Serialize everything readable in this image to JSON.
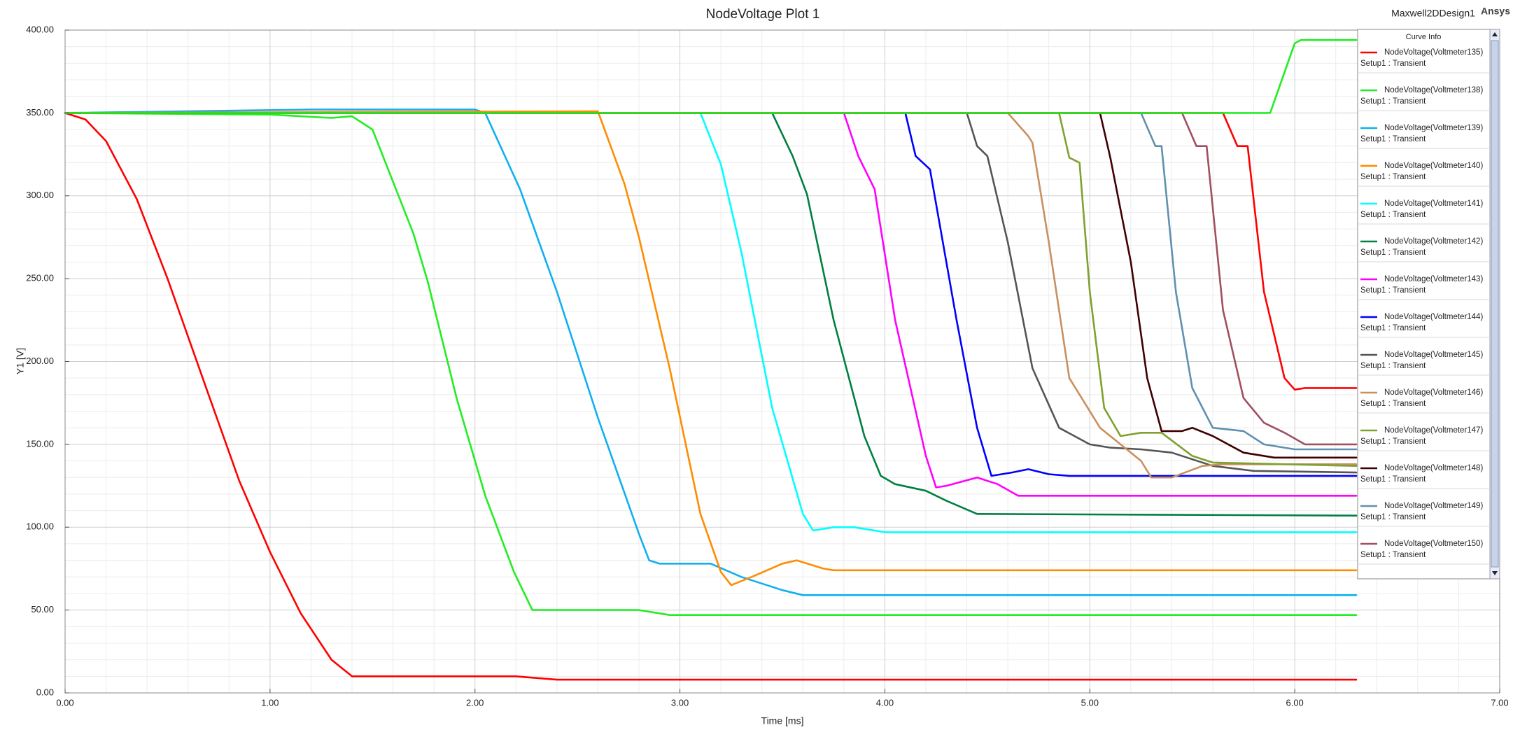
{
  "chart_data": {
    "type": "line",
    "title": "NodeVoltage Plot 1",
    "design_name": "Maxwell2DDesign1",
    "brand": "Ansys",
    "x_label": "Time [ms]",
    "y_label": "Y1 [V]",
    "legend_title": "Curve Info",
    "grid": true,
    "legend_position": "upper right",
    "xlim": [
      0,
      7
    ],
    "ylim": [
      0,
      400
    ],
    "xticks": [
      {
        "value": 0,
        "label": "0.00"
      },
      {
        "value": 1,
        "label": "1.00"
      },
      {
        "value": 2,
        "label": "2.00"
      },
      {
        "value": 3,
        "label": "3.00"
      },
      {
        "value": 4,
        "label": "4.00"
      },
      {
        "value": 5,
        "label": "5.00"
      },
      {
        "value": 6,
        "label": "6.00"
      },
      {
        "value": 7,
        "label": "7.00"
      }
    ],
    "yticks": [
      {
        "value": 0,
        "label": "0.00"
      },
      {
        "value": 50,
        "label": "50.00"
      },
      {
        "value": 100,
        "label": "100.00"
      },
      {
        "value": 150,
        "label": "150.00"
      },
      {
        "value": 200,
        "label": "200.00"
      },
      {
        "value": 250,
        "label": "250.00"
      },
      {
        "value": 300,
        "label": "300.00"
      },
      {
        "value": 350,
        "label": "350.00"
      },
      {
        "value": 400,
        "label": "400.00"
      }
    ],
    "series": [
      {
        "name": "NodeVoltage(Voltmeter135)",
        "setup": "Setup1 : Transient",
        "color": "#ff0000",
        "x": [
          0,
          0.1,
          0.2,
          0.35,
          0.5,
          0.7,
          0.85,
          1.0,
          1.15,
          1.3,
          1.4,
          2.2,
          2.4,
          6.3
        ],
        "values": [
          350,
          346,
          333,
          298,
          250,
          180,
          128,
          85,
          48,
          20,
          10,
          10,
          8,
          8
        ]
      },
      {
        "name": "NodeVoltage(Voltmeter138)",
        "setup": "Setup1 : Transient",
        "color": "#22ee22",
        "x": [
          0,
          1.0,
          1.3,
          1.4,
          1.5,
          1.7,
          1.77,
          1.91,
          2.05,
          2.19,
          2.28,
          2.8,
          2.95,
          6.3
        ],
        "values": [
          350,
          349,
          347,
          348,
          340,
          277,
          248,
          178,
          119,
          73,
          50,
          50,
          47,
          47
        ]
      },
      {
        "name": "NodeVoltage(Voltmeter139)",
        "setup": "Setup1 : Transient",
        "color": "#10b0f0",
        "x": [
          0,
          1.2,
          2.0,
          2.05,
          2.22,
          2.4,
          2.6,
          2.8,
          2.85,
          2.9,
          3.15,
          3.3,
          3.5,
          3.6,
          6.3
        ],
        "values": [
          350,
          352,
          352,
          350,
          304,
          242,
          166,
          96,
          80,
          78,
          78,
          70,
          62,
          59,
          59
        ]
      },
      {
        "name": "NodeVoltage(Voltmeter140)",
        "setup": "Setup1 : Transient",
        "color": "#ff8c00",
        "x": [
          0,
          2.6,
          2.73,
          2.8,
          2.95,
          3.1,
          3.2,
          3.25,
          3.35,
          3.5,
          3.57,
          3.7,
          3.75,
          6.3
        ],
        "values": [
          350,
          351,
          307,
          275,
          196,
          108,
          73,
          65,
          70,
          78,
          80,
          75,
          74,
          74
        ]
      },
      {
        "name": "NodeVoltage(Voltmeter141)",
        "setup": "Setup1 : Transient",
        "color": "#00ffff",
        "x": [
          0,
          3.1,
          3.2,
          3.3,
          3.45,
          3.6,
          3.65,
          3.75,
          3.85,
          4.0,
          6.3
        ],
        "values": [
          350,
          350,
          319,
          266,
          172,
          108,
          98,
          100,
          100,
          97,
          97
        ]
      },
      {
        "name": "NodeVoltage(Voltmeter142)",
        "setup": "Setup1 : Transient",
        "color": "#008040",
        "x": [
          0,
          3.45,
          3.55,
          3.62,
          3.75,
          3.9,
          3.98,
          4.05,
          4.2,
          4.3,
          4.45,
          6.3
        ],
        "values": [
          350,
          350,
          324,
          301,
          225,
          155,
          131,
          126,
          122,
          116,
          108,
          107
        ]
      },
      {
        "name": "NodeVoltage(Voltmeter143)",
        "setup": "Setup1 : Transient",
        "color": "#ff00ff",
        "x": [
          0,
          3.8,
          3.87,
          3.95,
          4.05,
          4.2,
          4.25,
          4.3,
          4.45,
          4.55,
          4.65,
          6.3
        ],
        "values": [
          350,
          350,
          324,
          304,
          225,
          143,
          124,
          125,
          130,
          126,
          119,
          119
        ]
      },
      {
        "name": "NodeVoltage(Voltmeter144)",
        "setup": "Setup1 : Transient",
        "color": "#0000ff",
        "x": [
          0,
          4.1,
          4.15,
          4.22,
          4.35,
          4.45,
          4.52,
          4.62,
          4.7,
          4.8,
          4.9,
          6.3
        ],
        "values": [
          350,
          350,
          324,
          316,
          225,
          160,
          131,
          133,
          135,
          132,
          131,
          131
        ]
      },
      {
        "name": "NodeVoltage(Voltmeter145)",
        "setup": "Setup1 : Transient",
        "color": "#555555",
        "x": [
          0,
          4.4,
          4.45,
          4.5,
          4.6,
          4.72,
          4.85,
          5.0,
          5.1,
          5.25,
          5.4,
          5.6,
          5.8,
          6.3
        ],
        "values": [
          350,
          350,
          330,
          324,
          272,
          196,
          160,
          150,
          148,
          147,
          145,
          137,
          134,
          133
        ]
      },
      {
        "name": "NodeVoltage(Voltmeter146)",
        "setup": "Setup1 : Transient",
        "color": "#c89060",
        "x": [
          0,
          4.6,
          4.7,
          4.72,
          4.8,
          4.9,
          5.05,
          5.25,
          5.3,
          5.4,
          5.55,
          5.65,
          6.3
        ],
        "values": [
          350,
          350,
          336,
          332,
          272,
          190,
          160,
          140,
          130,
          130,
          137,
          138,
          138
        ]
      },
      {
        "name": "NodeVoltage(Voltmeter147)",
        "setup": "Setup1 : Transient",
        "color": "#80a030",
        "x": [
          0,
          4.85,
          4.9,
          4.95,
          5.0,
          5.07,
          5.15,
          5.25,
          5.35,
          5.5,
          5.6,
          6.3
        ],
        "values": [
          350,
          350,
          323,
          320,
          242,
          172,
          155,
          157,
          157,
          143,
          139,
          137
        ]
      },
      {
        "name": "NodeVoltage(Voltmeter148)",
        "setup": "Setup1 : Transient",
        "color": "#400000",
        "x": [
          0,
          5.05,
          5.1,
          5.2,
          5.28,
          5.35,
          5.45,
          5.5,
          5.6,
          5.75,
          5.9,
          6.3
        ],
        "values": [
          350,
          350,
          323,
          260,
          190,
          158,
          158,
          160,
          155,
          145,
          142,
          142
        ]
      },
      {
        "name": "NodeVoltage(Voltmeter149)",
        "setup": "Setup1 : Transient",
        "color": "#6090b0",
        "x": [
          0,
          5.25,
          5.32,
          5.35,
          5.42,
          5.5,
          5.6,
          5.75,
          5.85,
          6.0,
          6.3
        ],
        "values": [
          350,
          350,
          330,
          330,
          242,
          184,
          160,
          158,
          150,
          147,
          147
        ]
      },
      {
        "name": "NodeVoltage(Voltmeter150)",
        "setup": "Setup1 : Transient",
        "color": "#a05060",
        "x": [
          0,
          5.45,
          5.52,
          5.57,
          5.65,
          5.75,
          5.85,
          5.95,
          6.05,
          6.3
        ],
        "values": [
          350,
          350,
          330,
          330,
          231,
          178,
          163,
          157,
          150,
          150
        ]
      },
      {
        "name": null,
        "color": "#ff0000",
        "x": [
          0,
          5.65,
          5.72,
          5.77,
          5.85,
          5.95,
          6.0,
          6.05,
          6.3
        ],
        "values": [
          350,
          350,
          330,
          330,
          242,
          190,
          183,
          184,
          184
        ]
      },
      {
        "name": null,
        "color": "#22ee22",
        "x": [
          0,
          5.88,
          6.0,
          6.03,
          6.3
        ],
        "values": [
          350,
          350,
          392,
          394,
          394
        ]
      }
    ]
  }
}
